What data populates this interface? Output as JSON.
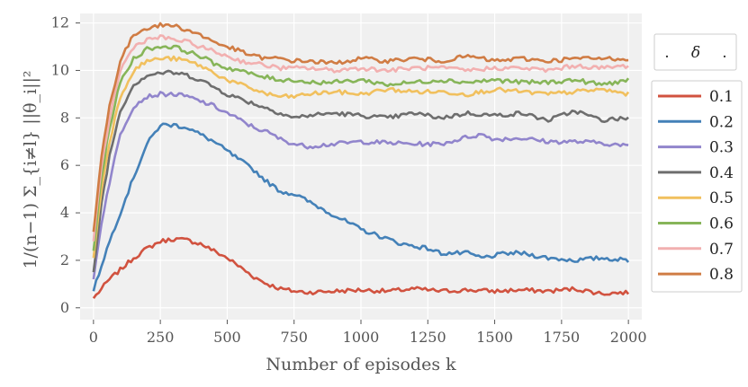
{
  "chart_data": {
    "type": "line",
    "xlabel": "Number of episodes k",
    "ylabel": "1/(n−1) Σ_{i≠l} ||θ_i||²",
    "xlim": [
      -50,
      2050
    ],
    "ylim": [
      -0.5,
      12.4
    ],
    "xticks": [
      "0",
      "250",
      "500",
      "750",
      "1000",
      "1250",
      "1500",
      "1750",
      "2000"
    ],
    "yticks": [
      "0",
      "2",
      "4",
      "6",
      "8",
      "10",
      "12"
    ],
    "grid": true,
    "legend": {
      "title_left": ".",
      "title_symbol": "δ",
      "title_right": ".",
      "placement": "right"
    },
    "series": [
      {
        "name": "0.1",
        "color": "#d1523f",
        "x": [
          0,
          30,
          60,
          100,
          150,
          200,
          250,
          300,
          350,
          400,
          450,
          500,
          550,
          600,
          650,
          700,
          750,
          800,
          900,
          1000,
          1100,
          1200,
          1300,
          1400,
          1500,
          1600,
          1700,
          1800,
          1900,
          2000
        ],
        "y": [
          0.4,
          0.8,
          1.2,
          1.6,
          2.1,
          2.5,
          2.8,
          2.9,
          2.85,
          2.7,
          2.4,
          2.1,
          1.7,
          1.3,
          1.0,
          0.8,
          0.7,
          0.65,
          0.7,
          0.75,
          0.7,
          0.8,
          0.7,
          0.75,
          0.7,
          0.75,
          0.7,
          0.8,
          0.6,
          0.65
        ]
      },
      {
        "name": "0.2",
        "color": "#4481b8",
        "x": [
          0,
          30,
          60,
          100,
          150,
          200,
          250,
          300,
          350,
          400,
          450,
          500,
          550,
          600,
          650,
          700,
          750,
          800,
          850,
          900,
          950,
          1000,
          1050,
          1100,
          1150,
          1200,
          1250,
          1300,
          1350,
          1400,
          1450,
          1500,
          1550,
          1600,
          1700,
          1800,
          1900,
          2000
        ],
        "y": [
          0.7,
          1.8,
          2.8,
          4.0,
          5.5,
          6.9,
          7.7,
          7.7,
          7.6,
          7.3,
          7.0,
          6.6,
          6.2,
          5.8,
          5.3,
          4.9,
          4.8,
          4.5,
          4.2,
          3.9,
          3.6,
          3.3,
          3.1,
          2.9,
          2.7,
          2.6,
          2.5,
          2.3,
          2.3,
          2.3,
          2.1,
          2.2,
          2.3,
          2.3,
          2.1,
          2.0,
          2.1,
          2.0
        ]
      },
      {
        "name": "0.3",
        "color": "#9185cc",
        "x": [
          0,
          30,
          60,
          100,
          150,
          200,
          250,
          300,
          350,
          400,
          450,
          500,
          550,
          600,
          650,
          700,
          750,
          800,
          900,
          1000,
          1100,
          1200,
          1300,
          1400,
          1450,
          1500,
          1600,
          1700,
          1800,
          1900,
          2000
        ],
        "y": [
          1.2,
          3.6,
          5.3,
          7.3,
          8.5,
          8.9,
          9.0,
          9.0,
          8.9,
          8.7,
          8.5,
          8.2,
          7.9,
          7.6,
          7.4,
          7.1,
          6.9,
          6.8,
          6.9,
          7.0,
          6.95,
          6.9,
          6.9,
          7.2,
          7.3,
          7.1,
          7.15,
          7.0,
          7.0,
          6.95,
          6.8
        ]
      },
      {
        "name": "0.4",
        "color": "#6e6e6e",
        "x": [
          0,
          30,
          60,
          100,
          150,
          200,
          250,
          300,
          350,
          400,
          450,
          500,
          550,
          600,
          650,
          700,
          750,
          800,
          900,
          1000,
          1100,
          1200,
          1300,
          1400,
          1500,
          1600,
          1700,
          1800,
          1900,
          2000
        ],
        "y": [
          1.5,
          4.4,
          6.4,
          8.3,
          9.4,
          9.8,
          9.9,
          9.9,
          9.8,
          9.6,
          9.3,
          9.0,
          8.8,
          8.6,
          8.4,
          8.2,
          8.0,
          8.1,
          8.2,
          8.1,
          8.0,
          8.2,
          8.0,
          8.2,
          8.1,
          8.2,
          7.9,
          8.3,
          7.9,
          8.0
        ]
      },
      {
        "name": "0.5",
        "color": "#f1c05e",
        "x": [
          0,
          30,
          60,
          100,
          150,
          200,
          250,
          300,
          350,
          400,
          450,
          500,
          550,
          600,
          650,
          700,
          750,
          800,
          900,
          1000,
          1100,
          1200,
          1300,
          1400,
          1500,
          1600,
          1700,
          1800,
          1900,
          2000
        ],
        "y": [
          2.1,
          5.0,
          7.0,
          8.9,
          10.0,
          10.4,
          10.5,
          10.5,
          10.4,
          10.2,
          9.9,
          9.6,
          9.4,
          9.2,
          9.0,
          8.9,
          8.9,
          9.0,
          9.1,
          9.0,
          9.2,
          9.1,
          9.1,
          9.0,
          9.2,
          9.1,
          9.0,
          9.1,
          9.2,
          9.0
        ]
      },
      {
        "name": "0.6",
        "color": "#87b559",
        "x": [
          0,
          30,
          60,
          100,
          150,
          200,
          250,
          300,
          350,
          400,
          450,
          500,
          550,
          600,
          650,
          700,
          750,
          800,
          900,
          1000,
          1100,
          1200,
          1300,
          1400,
          1500,
          1600,
          1700,
          1800,
          1900,
          2000
        ],
        "y": [
          2.4,
          5.5,
          7.6,
          9.5,
          10.5,
          10.9,
          11.0,
          11.0,
          10.8,
          10.6,
          10.3,
          10.1,
          10.0,
          9.8,
          9.7,
          9.6,
          9.6,
          9.5,
          9.5,
          9.6,
          9.4,
          9.5,
          9.6,
          9.5,
          9.6,
          9.5,
          9.5,
          9.6,
          9.4,
          9.6
        ]
      },
      {
        "name": "0.7",
        "color": "#f2b0b0",
        "x": [
          0,
          30,
          60,
          100,
          150,
          200,
          250,
          300,
          350,
          400,
          450,
          500,
          550,
          600,
          650,
          700,
          750,
          800,
          900,
          1000,
          1100,
          1200,
          1300,
          1400,
          1500,
          1600,
          1700,
          1800,
          1900,
          2000
        ],
        "y": [
          2.8,
          5.9,
          8.0,
          10.0,
          11.0,
          11.3,
          11.4,
          11.3,
          11.2,
          11.0,
          10.8,
          10.6,
          10.4,
          10.3,
          10.2,
          10.1,
          10.1,
          10.1,
          10.0,
          10.1,
          10.0,
          10.1,
          10.1,
          10.0,
          10.1,
          10.1,
          10.0,
          10.2,
          10.1,
          10.2
        ]
      },
      {
        "name": "0.8",
        "color": "#d07c44",
        "x": [
          0,
          30,
          60,
          100,
          150,
          200,
          250,
          300,
          350,
          400,
          450,
          500,
          550,
          600,
          650,
          700,
          750,
          800,
          900,
          1000,
          1100,
          1200,
          1300,
          1400,
          1500,
          1600,
          1700,
          1800,
          1900,
          2000
        ],
        "y": [
          3.2,
          6.4,
          8.5,
          10.4,
          11.5,
          11.8,
          11.9,
          11.9,
          11.7,
          11.5,
          11.2,
          11.0,
          10.8,
          10.6,
          10.5,
          10.5,
          10.4,
          10.4,
          10.3,
          10.5,
          10.4,
          10.5,
          10.4,
          10.6,
          10.4,
          10.5,
          10.4,
          10.5,
          10.5,
          10.5
        ]
      }
    ]
  }
}
